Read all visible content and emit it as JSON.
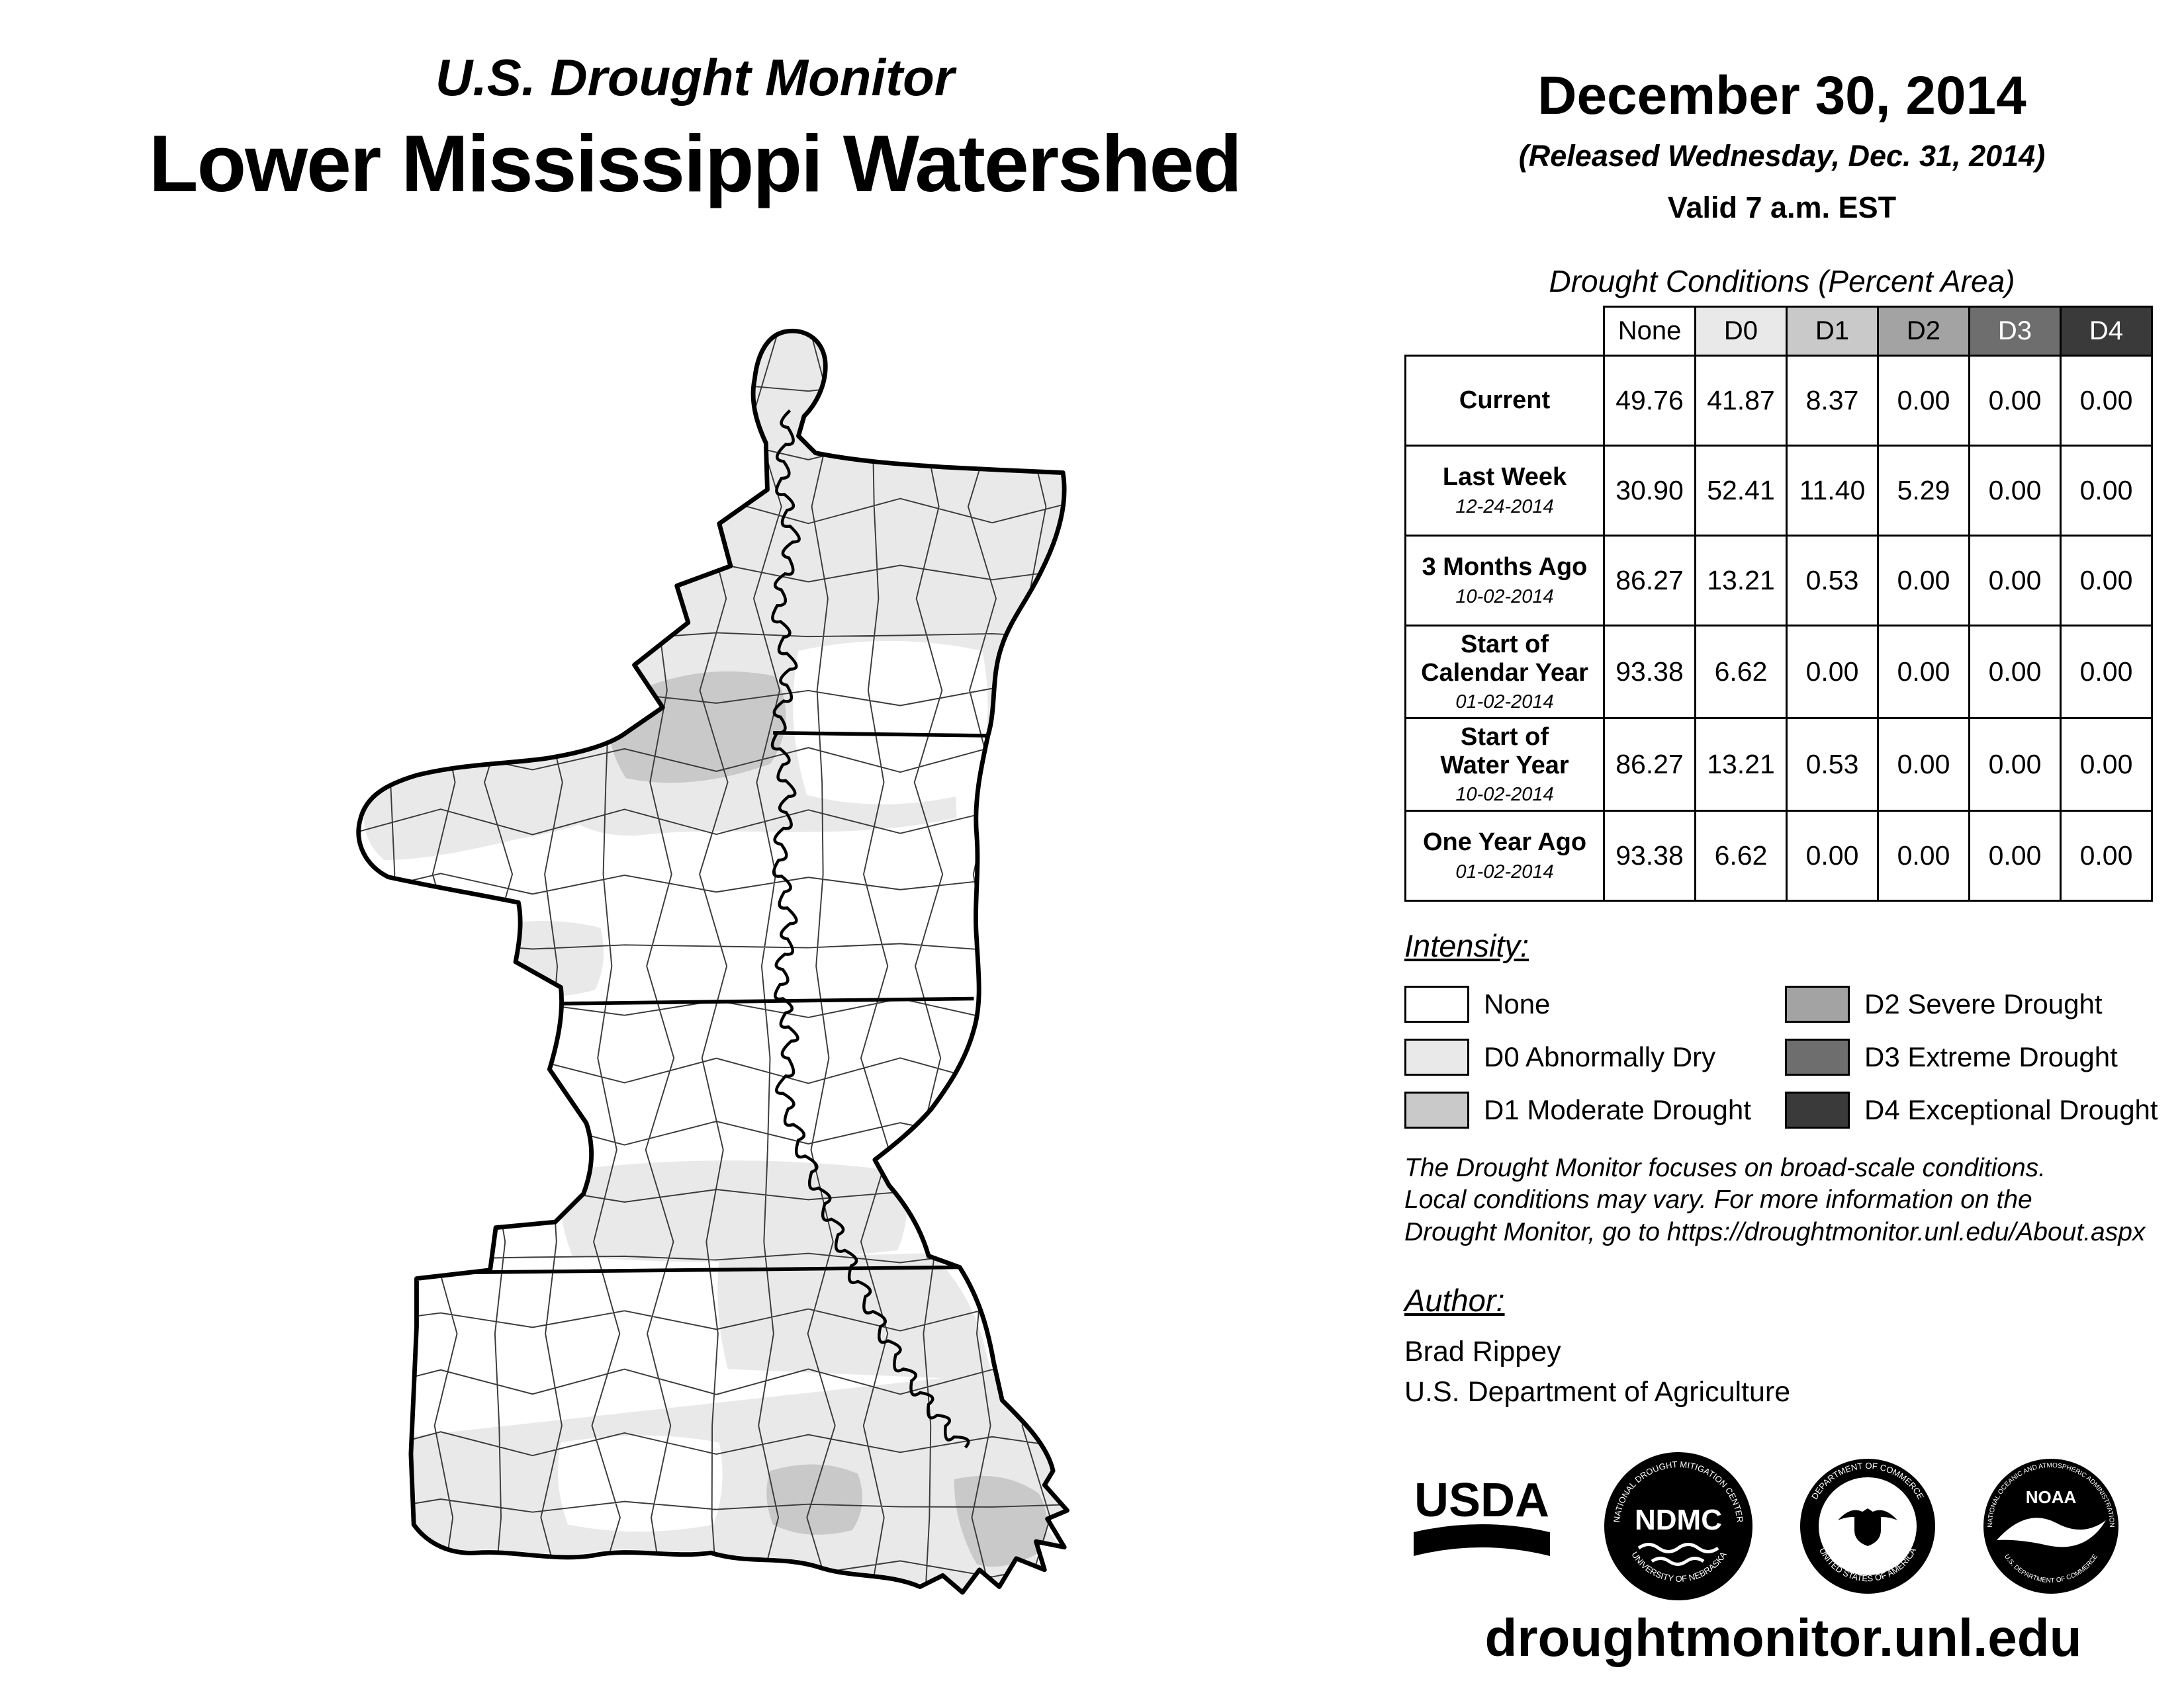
{
  "header": {
    "title_line1": "U.S. Drought Monitor",
    "title_line2": "Lower Mississippi Watershed",
    "date": "December 30, 2014",
    "released": "(Released Wednesday, Dec. 31, 2014)",
    "valid": "Valid 7 a.m. EST"
  },
  "table": {
    "title": "Drought Conditions (Percent Area)",
    "columns": [
      "None",
      "D0",
      "D1",
      "D2",
      "D3",
      "D4"
    ],
    "column_colors": [
      "#ffffff",
      "#e9e9e9",
      "#c9c9c9",
      "#a3a3a3",
      "#6e6e6e",
      "#3a3a3a"
    ],
    "column_text_colors": [
      "#000000",
      "#000000",
      "#000000",
      "#000000",
      "#ffffff",
      "#ffffff"
    ],
    "rows": [
      {
        "label": "Current",
        "sublabel": "",
        "values": [
          "49.76",
          "41.87",
          "8.37",
          "0.00",
          "0.00",
          "0.00"
        ]
      },
      {
        "label": "Last Week",
        "sublabel": "12-24-2014",
        "values": [
          "30.90",
          "52.41",
          "11.40",
          "5.29",
          "0.00",
          "0.00"
        ]
      },
      {
        "label": "3 Months Ago",
        "sublabel": "10-02-2014",
        "values": [
          "86.27",
          "13.21",
          "0.53",
          "0.00",
          "0.00",
          "0.00"
        ]
      },
      {
        "label": "Start of\nCalendar Year",
        "sublabel": "01-02-2014",
        "values": [
          "93.38",
          "6.62",
          "0.00",
          "0.00",
          "0.00",
          "0.00"
        ]
      },
      {
        "label": "Start of\nWater Year",
        "sublabel": "10-02-2014",
        "values": [
          "86.27",
          "13.21",
          "0.53",
          "0.00",
          "0.00",
          "0.00"
        ]
      },
      {
        "label": "One Year Ago",
        "sublabel": "01-02-2014",
        "values": [
          "93.38",
          "6.62",
          "0.00",
          "0.00",
          "0.00",
          "0.00"
        ]
      }
    ]
  },
  "legend": {
    "title": "Intensity:",
    "items": [
      {
        "label": "None",
        "color": "#ffffff"
      },
      {
        "label": "D0 Abnormally Dry",
        "color": "#e9e9e9"
      },
      {
        "label": "D1 Moderate Drought",
        "color": "#c9c9c9"
      },
      {
        "label": "D2 Severe Drought",
        "color": "#a3a3a3"
      },
      {
        "label": "D3 Extreme Drought",
        "color": "#6e6e6e"
      },
      {
        "label": "D4 Exceptional Drought",
        "color": "#3a3a3a"
      }
    ]
  },
  "disclaimer": {
    "line1": "The Drought Monitor focuses on broad-scale conditions.",
    "line2": "Local conditions may vary. For more information on the",
    "line3": "Drought Monitor, go to https://droughtmonitor.unl.edu/About.aspx"
  },
  "author": {
    "title": "Author:",
    "name": "Brad Rippey",
    "org": "U.S. Department of Agriculture"
  },
  "logos": {
    "usda": {
      "label": "USDA"
    },
    "ndmc": {
      "label": "NDMC",
      "ring_top": "NATIONAL DROUGHT MITIGATION CENTER",
      "ring_bottom": "UNIVERSITY OF NEBRASKA"
    },
    "doc": {
      "ring_top": "DEPARTMENT OF COMMERCE",
      "ring_bottom": "UNITED STATES OF AMERICA"
    },
    "noaa": {
      "label": "NOAA",
      "ring_top": "NATIONAL OCEANIC AND ATMOSPHERIC ADMINISTRATION",
      "ring_bottom": "U.S. DEPARTMENT OF COMMERCE"
    }
  },
  "footer": {
    "url": "droughtmonitor.unl.edu"
  }
}
